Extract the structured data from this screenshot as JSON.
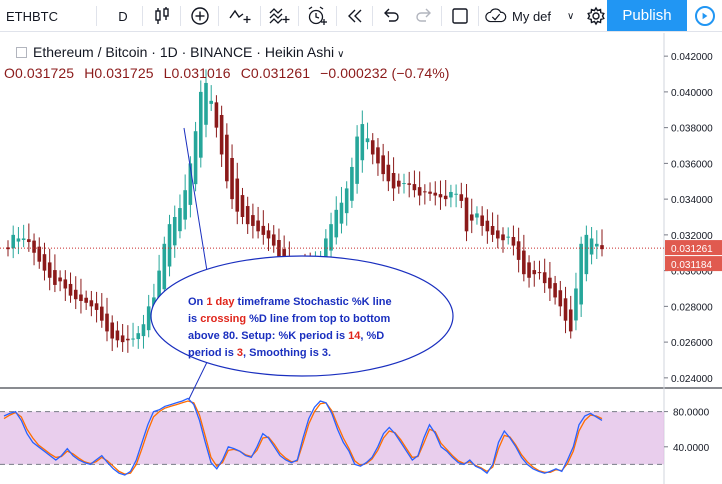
{
  "toolbar": {
    "symbol": "ETHBTC",
    "interval": "D",
    "icons": [
      "bar-style-icon",
      "add-compare-icon",
      "indicators-icon",
      "fib-icon",
      "alert-icon",
      "replay-icon",
      "undo-icon",
      "redo-icon",
      "fullscreen-icon",
      "cloud-icon",
      "settings-icon"
    ],
    "layout_name": "My def",
    "publish_label": "Publish"
  },
  "legend": {
    "title": "Ethereum / Bitcoin · 1D · BINANCE · Heikin Ashi",
    "open": "O0.031725",
    "high": "H0.031725",
    "low": "L0.031016",
    "close": "C0.031261",
    "change": "−0.000232 (−0.74%)"
  },
  "annotation": {
    "parts": [
      {
        "t": "On ",
        "c": "#1a2fbf"
      },
      {
        "t": "1 day",
        "c": "#e0251b"
      },
      {
        "t": " timeframe Stochastic %K line is ",
        "c": "#1a2fbf"
      },
      {
        "t": "crossing",
        "c": "#e0251b"
      },
      {
        "t": " %D line from top to bottom above 80. Setup: %K period is ",
        "c": "#1a2fbf"
      },
      {
        "t": "14",
        "c": "#e0251b"
      },
      {
        "t": ", %D period is ",
        "c": "#1a2fbf"
      },
      {
        "t": "3",
        "c": "#e0251b"
      },
      {
        "t": ", Smoothing is 3.",
        "c": "#1a2fbf"
      }
    ]
  },
  "colors": {
    "up": "#26a69a",
    "down": "#8b1a1a",
    "price_line": "#c62828",
    "stoch_k": "#2962ff",
    "stoch_d": "#ff6d00",
    "stoch_band": "#e1bee7",
    "annotation_border": "#1a2fbf"
  },
  "chart_data": {
    "type": "candlestick",
    "price_axis": {
      "ticks": [
        "0.042000",
        "0.040000",
        "0.038000",
        "0.036000",
        "0.034000",
        "0.032000",
        "0.030000",
        "0.028000",
        "0.026000",
        "0.024000"
      ],
      "range": [
        0.0236,
        0.0424
      ]
    },
    "last_price_label": "0.031261",
    "second_price_label": "0.031184",
    "closes": [
      0.0312,
      0.032,
      0.0318,
      0.0318,
      0.0316,
      0.031,
      0.0305,
      0.03,
      0.0296,
      0.0292,
      0.0294,
      0.029,
      0.0286,
      0.0284,
      0.0283,
      0.0282,
      0.028,
      0.0278,
      0.0272,
      0.0266,
      0.0262,
      0.0261,
      0.026,
      0.0261,
      0.0262,
      0.0265,
      0.027,
      0.028,
      0.0285,
      0.03,
      0.0315,
      0.0326,
      0.033,
      0.0335,
      0.0345,
      0.036,
      0.0378,
      0.04,
      0.0405,
      0.0395,
      0.038,
      0.0365,
      0.035,
      0.034,
      0.0333,
      0.033,
      0.0326,
      0.0325,
      0.0322,
      0.032,
      0.0318,
      0.0314,
      0.0307,
      0.0303,
      0.03,
      0.0302,
      0.0303,
      0.0302,
      0.0301,
      0.0302,
      0.0307,
      0.0318,
      0.0326,
      0.0334,
      0.0338,
      0.0346,
      0.0358,
      0.0375,
      0.0382,
      0.0374,
      0.0365,
      0.036,
      0.0354,
      0.035,
      0.0346,
      0.0347,
      0.0349,
      0.0348,
      0.0345,
      0.0342,
      0.0344,
      0.0343,
      0.0342,
      0.0341,
      0.034,
      0.0344,
      0.0343,
      0.0339,
      0.0322,
      0.0328,
      0.0332,
      0.0325,
      0.0322,
      0.032,
      0.0318,
      0.0317,
      0.0319,
      0.0314,
      0.0306,
      0.0298,
      0.0296,
      0.0298,
      0.0299,
      0.0293,
      0.029,
      0.0285,
      0.028,
      0.0272,
      0.0266,
      0.029,
      0.0315,
      0.032,
      0.0318,
      0.0315,
      0.0312
    ],
    "stochastic": {
      "band": [
        80,
        20
      ],
      "ticks": [
        "80.0000",
        "40.0000"
      ],
      "k": [
        75,
        78,
        80,
        70,
        55,
        45,
        40,
        35,
        30,
        25,
        30,
        38,
        30,
        25,
        22,
        20,
        25,
        30,
        22,
        15,
        10,
        8,
        12,
        25,
        45,
        65,
        80,
        82,
        86,
        88,
        90,
        92,
        95,
        88,
        70,
        45,
        22,
        15,
        25,
        40,
        38,
        35,
        30,
        28,
        40,
        55,
        50,
        40,
        30,
        25,
        22,
        25,
        50,
        72,
        85,
        92,
        90,
        78,
        60,
        45,
        35,
        20,
        18,
        22,
        28,
        40,
        55,
        62,
        55,
        45,
        35,
        25,
        30,
        50,
        65,
        55,
        40,
        35,
        28,
        22,
        20,
        25,
        18,
        15,
        10,
        20,
        45,
        58,
        50,
        40,
        28,
        20,
        15,
        12,
        10,
        12,
        15,
        12,
        25,
        40,
        65,
        75,
        78,
        74,
        70
      ],
      "d": [
        72,
        76,
        79,
        74,
        60,
        50,
        42,
        37,
        32,
        28,
        29,
        35,
        32,
        27,
        23,
        21,
        23,
        28,
        24,
        18,
        12,
        9,
        10,
        20,
        38,
        58,
        74,
        80,
        84,
        86,
        88,
        90,
        92,
        90,
        76,
        52,
        28,
        18,
        22,
        36,
        37,
        35,
        31,
        29,
        36,
        50,
        51,
        43,
        33,
        27,
        23,
        24,
        44,
        66,
        80,
        89,
        90,
        81,
        65,
        50,
        38,
        24,
        19,
        21,
        26,
        36,
        50,
        58,
        56,
        48,
        38,
        28,
        29,
        44,
        60,
        57,
        44,
        37,
        30,
        24,
        21,
        23,
        19,
        16,
        12,
        17,
        38,
        53,
        51,
        42,
        31,
        23,
        17,
        13,
        11,
        11,
        14,
        13,
        21,
        35,
        58,
        70,
        76,
        75,
        72
      ]
    }
  }
}
